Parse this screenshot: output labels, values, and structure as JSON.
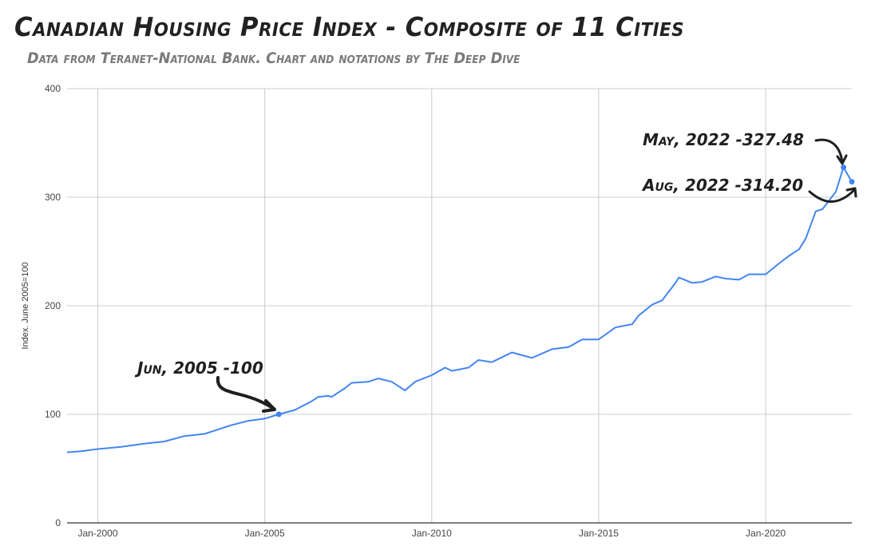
{
  "chart_data": {
    "type": "line",
    "title": "Canadian Housing Price Index - Composite of 11 Cities",
    "subtitle": "Data from Teranet-National Bank. Chart and notations by The Deep Dive",
    "xlabel": "",
    "ylabel": "Index. June 2005=100",
    "ylim": [
      0,
      400
    ],
    "xlim": [
      1999.08,
      2022.58
    ],
    "yticks": [
      0,
      100,
      200,
      300,
      400
    ],
    "ytick_labels": [
      "0",
      "100",
      "200",
      "300",
      "400"
    ],
    "xticks": [
      2000,
      2005,
      2010,
      2015,
      2020
    ],
    "xtick_labels": [
      "Jan-2000",
      "Jan-2005",
      "Jan-2010",
      "Jan-2015",
      "Jan-2020"
    ],
    "grid": true,
    "legend": "none",
    "series": [
      {
        "name": "Composite 11",
        "color": "#4285f4",
        "x": [
          1999.08,
          1999.5,
          2000.0,
          2000.7,
          2001.4,
          2002.0,
          2002.6,
          2003.2,
          2004.0,
          2004.5,
          2005.0,
          2005.42,
          2005.9,
          2006.4,
          2006.6,
          2006.9,
          2007.0,
          2007.4,
          2007.6,
          2008.1,
          2008.4,
          2008.8,
          2009.2,
          2009.5,
          2010.0,
          2010.4,
          2010.6,
          2011.1,
          2011.4,
          2011.8,
          2012.4,
          2013.0,
          2013.6,
          2014.1,
          2014.5,
          2015.0,
          2015.5,
          2016.0,
          2016.2,
          2016.6,
          2016.9,
          2017.3,
          2017.4,
          2017.8,
          2018.1,
          2018.5,
          2018.8,
          2019.2,
          2019.5,
          2020.0,
          2020.4,
          2020.7,
          2021.0,
          2021.2,
          2021.5,
          2021.7,
          2022.1,
          2022.33,
          2022.58
        ],
        "y": [
          65,
          66,
          68,
          70,
          73,
          75,
          80,
          82,
          90,
          94,
          96,
          100,
          104,
          112,
          116,
          117,
          116,
          124,
          129,
          130,
          133,
          130,
          122,
          130,
          136,
          143,
          140,
          143,
          150,
          148,
          157,
          152,
          160,
          162,
          169,
          169,
          180,
          183,
          191,
          201,
          205,
          221,
          226,
          221,
          222,
          227,
          225,
          224,
          229,
          229,
          239,
          246,
          252,
          262,
          287,
          289,
          305,
          327.48,
          314.2
        ]
      }
    ],
    "annotations": [
      {
        "text": "Jun, 2005 -100",
        "x": 2005.42,
        "y": 100
      },
      {
        "text": "May, 2022 -327.48",
        "x": 2022.33,
        "y": 327.48
      },
      {
        "text": "Aug, 2022 -314.20",
        "x": 2022.58,
        "y": 314.2
      }
    ]
  }
}
